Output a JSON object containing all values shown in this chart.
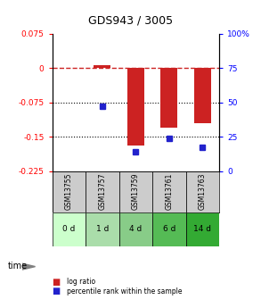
{
  "title": "GDS943 / 3005",
  "samples": [
    "GSM13755",
    "GSM13757",
    "GSM13759",
    "GSM13761",
    "GSM13763"
  ],
  "time_labels": [
    "0 d",
    "1 d",
    "4 d",
    "6 d",
    "14 d"
  ],
  "log_ratios": [
    0.0,
    0.007,
    -0.17,
    -0.13,
    -0.12
  ],
  "percentile_ranks": [
    null,
    47,
    14,
    24,
    17
  ],
  "ylim_left": [
    -0.225,
    0.075
  ],
  "ylim_right": [
    0,
    100
  ],
  "yticks_left": [
    0.075,
    0,
    -0.075,
    -0.15,
    -0.225
  ],
  "yticks_right": [
    100,
    75,
    50,
    25,
    0
  ],
  "ytick_labels_left": [
    "0.075",
    "0",
    "-0.075",
    "-0.15",
    "-0.225"
  ],
  "ytick_labels_right": [
    "100%",
    "75",
    "50",
    "25",
    "0"
  ],
  "bar_color": "#cc2222",
  "dot_color": "#2222cc",
  "dotted_lines": [
    -0.075,
    -0.15
  ],
  "background_plot": "#ffffff",
  "sample_bg": "#cccccc",
  "time_bg_colors": [
    "#ccffcc",
    "#aaddaa",
    "#88cc88",
    "#55bb55",
    "#33aa33"
  ],
  "legend_log_ratio": "log ratio",
  "legend_percentile": "percentile rank within the sample"
}
